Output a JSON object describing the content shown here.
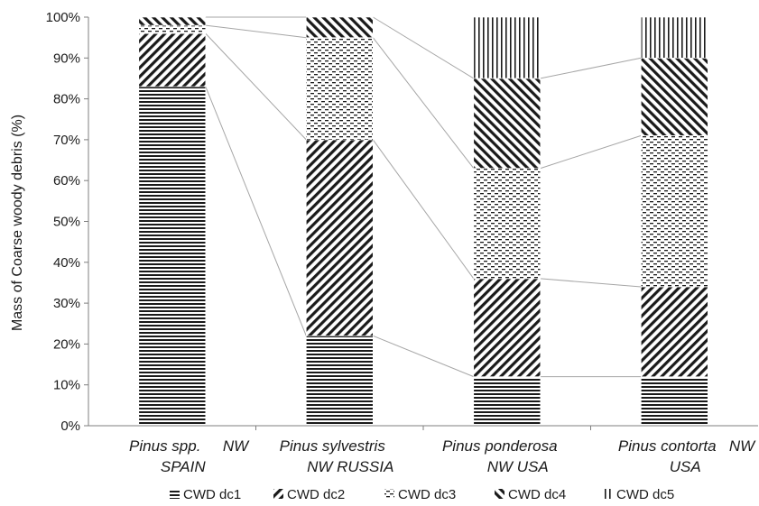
{
  "chart_data": {
    "type": "bar",
    "stacked": true,
    "percent": true,
    "ylabel": "Mass of Coarse woody debris (%)",
    "ylim": [
      0,
      100
    ],
    "yticks": [
      "0%",
      "10%",
      "20%",
      "30%",
      "40%",
      "50%",
      "60%",
      "70%",
      "80%",
      "90%",
      "100%"
    ],
    "grid": false,
    "legend_position": "bottom",
    "categories": [
      {
        "species": "Pinus spp.",
        "region": "SPAIN"
      },
      {
        "species": "Pinus sylvestris",
        "region": "NW RUSSIA"
      },
      {
        "species": "Pinus ponderosa",
        "region": "NW USA"
      },
      {
        "species": "Pinus contorta",
        "region": "USA"
      }
    ],
    "stray_labels": [
      "NW",
      "NW"
    ],
    "series": [
      {
        "name": "CWD dc1",
        "pattern": "horizontal-lines",
        "values": [
          83,
          22,
          12,
          12
        ]
      },
      {
        "name": "CWD dc2",
        "pattern": "diagonal-lines",
        "values": [
          13,
          48,
          24,
          22
        ]
      },
      {
        "name": "CWD dc3",
        "pattern": "dashes",
        "values": [
          2,
          25,
          27,
          37
        ]
      },
      {
        "name": "CWD dc4",
        "pattern": "back-diagonal-lines",
        "values": [
          2,
          5,
          22,
          19
        ]
      },
      {
        "name": "CWD dc5",
        "pattern": "vertical-lines",
        "values": [
          0,
          0,
          15,
          10
        ]
      }
    ],
    "colors": {
      "ink": "#1a1a1a",
      "axis": "#7f7f7f",
      "connector": "#a6a6a6"
    }
  }
}
